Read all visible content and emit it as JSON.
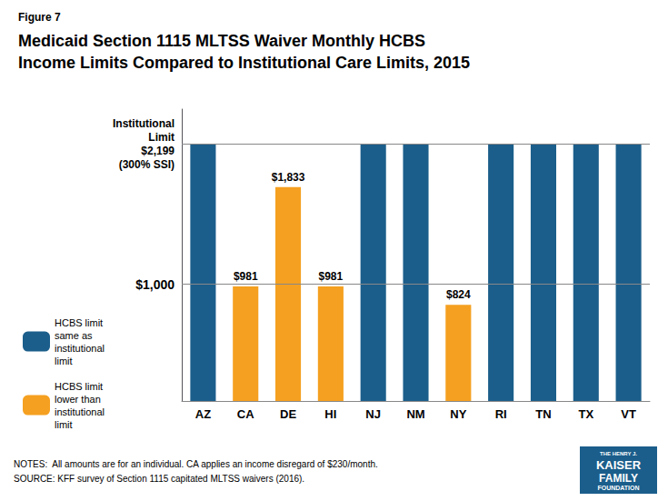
{
  "chart_data": {
    "type": "bar",
    "subtitle": "Figure 7",
    "title": "Medicaid Section 1115 MLTSS Waiver Monthly HCBS\nIncome Limits Compared to Institutional Care Limits, 2015",
    "categories": [
      "AZ",
      "CA",
      "DE",
      "HI",
      "NJ",
      "NM",
      "NY",
      "RI",
      "TN",
      "TX",
      "VT"
    ],
    "series": [
      {
        "name": "HCBS limit\nsame as\ninstitutional\nlimit",
        "color": "#1B5E8B",
        "values": [
          2199,
          null,
          null,
          null,
          2199,
          2199,
          null,
          2199,
          2199,
          2199,
          2199
        ]
      },
      {
        "name": "HCBS limit\nlower than\ninstitutional\nlimit",
        "color": "#F5A020",
        "values": [
          null,
          981,
          1833,
          981,
          null,
          null,
          824,
          null,
          null,
          null,
          null
        ],
        "value_labels": [
          null,
          "$981",
          "$1,833",
          "$981",
          null,
          null,
          "$824",
          null,
          null,
          null,
          null
        ]
      }
    ],
    "ylim": [
      0,
      2500
    ],
    "yticks": [],
    "tick_labels": "x",
    "grid": false,
    "legend": "left",
    "annotations": [
      {
        "y": 2199,
        "text": "Institutional\nLimit\n$2,199\n(300% SSI)"
      },
      {
        "y": 1000,
        "text": "$1,000"
      }
    ],
    "notes": [
      "NOTES:  All amounts are for an individual. CA applies an income disregard of $230/month.",
      "SOURCE: KFF survey of Section 1115 capitated MLTSS waivers (2016)."
    ],
    "logo": [
      "THE HENRY J.",
      "KAISER",
      "FAMILY",
      "FOUNDATION"
    ]
  }
}
